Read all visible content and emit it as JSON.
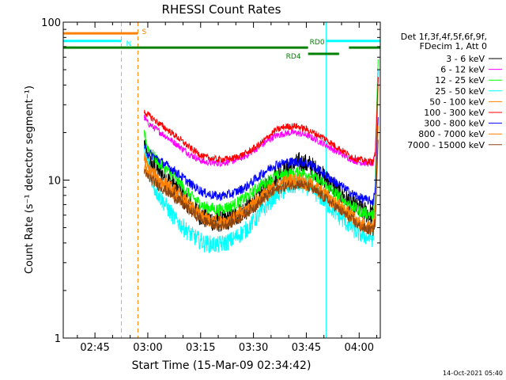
{
  "chart_data": {
    "type": "line",
    "title": "RHESSI Count Rates",
    "xlabel": "Start Time (15-Mar-09 02:34:42)",
    "ylabel": "Count Rate (s⁻¹ detector segment⁻¹)",
    "y_scale": "log",
    "ylim": [
      1,
      100
    ],
    "xlim_minutes": [
      36,
      126
    ],
    "x_ticks": [
      {
        "label": "02:45",
        "minute": 45
      },
      {
        "label": "03:00",
        "minute": 60
      },
      {
        "label": "03:15",
        "minute": 75
      },
      {
        "label": "03:30",
        "minute": 90
      },
      {
        "label": "03:45",
        "minute": 105
      },
      {
        "label": "04:00",
        "minute": 120
      }
    ],
    "y_ticks": [
      {
        "label": "1",
        "value": 1
      },
      {
        "label": "10",
        "value": 10
      },
      {
        "label": "100",
        "value": 100
      }
    ],
    "legend_header": [
      "Det 1f,3f,4f,5f,6f,9f,",
      "FDecim 1, Att 0"
    ],
    "legend_position": "right",
    "series": [
      {
        "name": "3 - 6 keV",
        "color": "#000000",
        "values": [
          [
            59,
            17
          ],
          [
            60,
            13
          ],
          [
            63,
            11.5
          ],
          [
            68,
            9
          ],
          [
            72,
            7
          ],
          [
            76,
            5.8
          ],
          [
            80,
            5.5
          ],
          [
            84,
            5.8
          ],
          [
            88,
            6.6
          ],
          [
            92,
            8
          ],
          [
            96,
            10.5
          ],
          [
            100,
            12
          ],
          [
            103,
            13
          ],
          [
            106,
            12.5
          ],
          [
            110,
            10.5
          ],
          [
            114,
            8.5
          ],
          [
            118,
            7
          ],
          [
            120,
            6.6
          ],
          [
            122,
            6.3
          ],
          [
            124,
            6
          ],
          [
            124.6,
            7
          ],
          [
            125,
            20
          ],
          [
            125.4,
            45
          ]
        ]
      },
      {
        "name": "6 - 12 keV",
        "color": "#ff00ff",
        "values": [
          [
            59,
            25
          ],
          [
            60,
            23
          ],
          [
            63,
            20.5
          ],
          [
            68,
            17
          ],
          [
            72,
            14.5
          ],
          [
            76,
            13
          ],
          [
            80,
            12.8
          ],
          [
            84,
            13.2
          ],
          [
            88,
            14.3
          ],
          [
            92,
            16.5
          ],
          [
            96,
            19
          ],
          [
            99,
            19.8
          ],
          [
            102,
            20
          ],
          [
            105,
            19.3
          ],
          [
            110,
            17
          ],
          [
            114,
            15
          ],
          [
            118,
            13.5
          ],
          [
            120,
            13
          ],
          [
            122,
            12.8
          ],
          [
            124,
            12.8
          ],
          [
            124.6,
            15
          ],
          [
            125,
            28
          ],
          [
            125.4,
            50
          ]
        ]
      },
      {
        "name": "12 - 25 keV",
        "color": "#00ff00",
        "values": [
          [
            59,
            20
          ],
          [
            60,
            16
          ],
          [
            63,
            13
          ],
          [
            68,
            10.2
          ],
          [
            72,
            8
          ],
          [
            76,
            6.8
          ],
          [
            80,
            6.5
          ],
          [
            84,
            6.9
          ],
          [
            88,
            7.8
          ],
          [
            92,
            9.3
          ],
          [
            96,
            10.5
          ],
          [
            100,
            11
          ],
          [
            103,
            11.2
          ],
          [
            106,
            10.8
          ],
          [
            110,
            9.5
          ],
          [
            114,
            8
          ],
          [
            118,
            6.8
          ],
          [
            120,
            6.4
          ],
          [
            122,
            6.2
          ],
          [
            124,
            6
          ],
          [
            124.6,
            9
          ],
          [
            125,
            30
          ],
          [
            125.4,
            58
          ]
        ]
      },
      {
        "name": "25 - 50 keV",
        "color": "#00ffff",
        "values": [
          [
            59,
            15
          ],
          [
            60,
            13
          ],
          [
            62,
            8.8
          ],
          [
            65,
            7
          ],
          [
            68,
            5.6
          ],
          [
            72,
            4.6
          ],
          [
            76,
            4
          ],
          [
            80,
            3.9
          ],
          [
            84,
            4.2
          ],
          [
            88,
            4.9
          ],
          [
            92,
            6.2
          ],
          [
            96,
            8
          ],
          [
            100,
            9
          ],
          [
            103,
            9.5
          ],
          [
            106,
            9
          ],
          [
            110,
            7.5
          ],
          [
            114,
            6
          ],
          [
            118,
            5
          ],
          [
            120,
            4.6
          ],
          [
            122,
            4.4
          ],
          [
            124,
            4.3
          ],
          [
            124.6,
            8
          ],
          [
            125,
            25
          ],
          [
            125.4,
            50
          ]
        ]
      },
      {
        "name": "50 - 100 keV",
        "color": "#ff8000",
        "values": [
          [
            59,
            14
          ],
          [
            60,
            12
          ],
          [
            63,
            10.3
          ],
          [
            68,
            8.5
          ],
          [
            72,
            6.9
          ],
          [
            76,
            5.8
          ],
          [
            80,
            5.4
          ],
          [
            84,
            5.7
          ],
          [
            88,
            6.6
          ],
          [
            92,
            7.9
          ],
          [
            96,
            9.2
          ],
          [
            100,
            10
          ],
          [
            103,
            10.1
          ],
          [
            106,
            9.6
          ],
          [
            110,
            8.3
          ],
          [
            114,
            7
          ],
          [
            118,
            6
          ],
          [
            120,
            5.4
          ],
          [
            122,
            5.1
          ],
          [
            124,
            5
          ],
          [
            124.6,
            7
          ],
          [
            125,
            18
          ],
          [
            125.4,
            40
          ]
        ]
      },
      {
        "name": "100 - 300 keV",
        "color": "#ff0000",
        "values": [
          [
            59,
            27
          ],
          [
            60,
            26
          ],
          [
            63,
            23
          ],
          [
            68,
            19
          ],
          [
            72,
            16
          ],
          [
            76,
            14
          ],
          [
            80,
            13.5
          ],
          [
            84,
            13.7
          ],
          [
            88,
            14.8
          ],
          [
            92,
            17
          ],
          [
            96,
            20.5
          ],
          [
            99,
            21.8
          ],
          [
            102,
            22
          ],
          [
            105,
            21
          ],
          [
            110,
            18.5
          ],
          [
            114,
            16
          ],
          [
            118,
            14
          ],
          [
            120,
            13.5
          ],
          [
            122,
            13.2
          ],
          [
            124,
            13
          ],
          [
            124.6,
            15
          ],
          [
            125,
            25
          ],
          [
            125.4,
            45
          ]
        ]
      },
      {
        "name": "300 - 800 keV",
        "color": "#0000ff",
        "values": [
          [
            59,
            16
          ],
          [
            60,
            15
          ],
          [
            63,
            13.5
          ],
          [
            68,
            11.3
          ],
          [
            72,
            9.5
          ],
          [
            76,
            8.3
          ],
          [
            80,
            7.9
          ],
          [
            84,
            8.2
          ],
          [
            88,
            9.1
          ],
          [
            92,
            10.8
          ],
          [
            96,
            12.5
          ],
          [
            100,
            13
          ],
          [
            103,
            13.1
          ],
          [
            106,
            12.7
          ],
          [
            110,
            11
          ],
          [
            114,
            9.5
          ],
          [
            118,
            8.2
          ],
          [
            120,
            7.8
          ],
          [
            122,
            7.5
          ],
          [
            124,
            7.3
          ],
          [
            124.6,
            9
          ],
          [
            125,
            15
          ],
          [
            125.4,
            25
          ]
        ]
      },
      {
        "name": "800 - 7000 keV",
        "color": "#ff8000",
        "values": [
          [
            59,
            12
          ],
          [
            60,
            11
          ],
          [
            63,
            9.7
          ],
          [
            68,
            8
          ],
          [
            72,
            6.6
          ],
          [
            76,
            5.7
          ],
          [
            80,
            5.3
          ],
          [
            84,
            5.5
          ],
          [
            88,
            6.3
          ],
          [
            92,
            7.5
          ],
          [
            96,
            8.8
          ],
          [
            100,
            9.5
          ],
          [
            103,
            9.7
          ],
          [
            106,
            9.2
          ],
          [
            110,
            8
          ],
          [
            114,
            6.8
          ],
          [
            118,
            5.8
          ],
          [
            120,
            5.3
          ],
          [
            122,
            5
          ],
          [
            124,
            4.9
          ],
          [
            124.6,
            6
          ],
          [
            125,
            12
          ],
          [
            125.4,
            22
          ]
        ]
      },
      {
        "name": "7000 - 15000 keV",
        "color": "#8b4513",
        "values": [
          [
            59,
            11
          ],
          [
            60,
            10.5
          ],
          [
            63,
            9.3
          ],
          [
            68,
            7.7
          ],
          [
            72,
            6.4
          ],
          [
            76,
            5.5
          ],
          [
            80,
            5.1
          ],
          [
            84,
            5.4
          ],
          [
            88,
            6.2
          ],
          [
            92,
            7.3
          ],
          [
            96,
            8.6
          ],
          [
            100,
            9.3
          ],
          [
            103,
            9.5
          ],
          [
            106,
            9
          ],
          [
            110,
            7.8
          ],
          [
            114,
            6.6
          ],
          [
            118,
            5.6
          ],
          [
            120,
            5.1
          ],
          [
            122,
            4.9
          ],
          [
            124,
            4.8
          ],
          [
            124.6,
            5.5
          ],
          [
            125,
            10
          ],
          [
            125.4,
            18
          ]
        ]
      }
    ],
    "vertical_markers": [
      {
        "minute": 36.0,
        "color": "#00ffff",
        "style": "solid"
      },
      {
        "minute": 52.5,
        "color": "#00ffff",
        "style": "dashed"
      },
      {
        "minute": 57.2,
        "color": "#ff8000",
        "style": "dashed"
      },
      {
        "minute": 110.6,
        "color": "#00ffff",
        "style": "solid"
      },
      {
        "minute": 126.0,
        "color": "#00ffff",
        "style": "dashed"
      }
    ],
    "status_bars": [
      {
        "label": "S",
        "color": "#ff8000",
        "segments": [
          [
            36,
            57.2
          ]
        ],
        "level": 85
      },
      {
        "label": "N",
        "color": "#00ffff",
        "segments": [
          [
            36,
            52.5
          ],
          [
            110.6,
            126
          ]
        ],
        "level": 76
      },
      {
        "label": "RD0",
        "color": "#008000",
        "segments": [
          [
            36,
            105.5
          ],
          [
            117.1,
            126
          ]
        ],
        "level": 69
      },
      {
        "label": "RD4",
        "color": "#008000",
        "segments": [
          [
            105.5,
            114.3
          ]
        ],
        "level": 63
      }
    ]
  },
  "footer": {
    "timestamp": "14-Oct-2021 05:40"
  }
}
